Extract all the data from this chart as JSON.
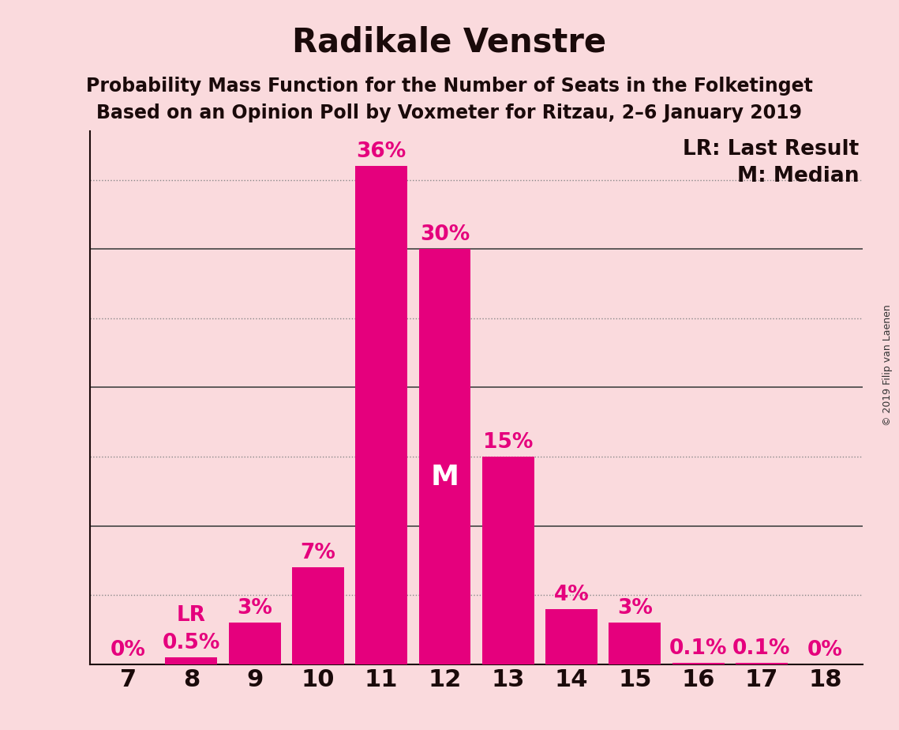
{
  "title": "Radikale Venstre",
  "subtitle1": "Probability Mass Function for the Number of Seats in the Folketinget",
  "subtitle2": "Based on an Opinion Poll by Voxmeter for Ritzau, 2–6 January 2019",
  "copyright": "© 2019 Filip van Laenen",
  "seats": [
    7,
    8,
    9,
    10,
    11,
    12,
    13,
    14,
    15,
    16,
    17,
    18
  ],
  "probabilities": [
    0.0,
    0.5,
    3.0,
    7.0,
    36.0,
    30.0,
    15.0,
    4.0,
    3.0,
    0.1,
    0.1,
    0.0
  ],
  "bar_color": "#E5007D",
  "background_color": "#FADADD",
  "text_color": "#1a0a0a",
  "bar_labels": [
    "0%",
    "0.5%",
    "3%",
    "7%",
    "36%",
    "30%",
    "15%",
    "4%",
    "3%",
    "0.1%",
    "0.1%",
    "0%"
  ],
  "LR_seat": 8,
  "LR_label": "LR",
  "Median_seat": 12,
  "Median_label": "M",
  "yticks_solid": [
    0,
    10,
    20,
    30
  ],
  "yticks_dotted": [
    5,
    15,
    25,
    35
  ],
  "ylim": [
    0,
    38.5
  ],
  "legend_LR": "LR: Last Result",
  "legend_M": "M: Median",
  "title_fontsize": 30,
  "subtitle_fontsize": 17,
  "axis_fontsize": 22,
  "bar_label_fontsize": 19,
  "legend_fontsize": 19,
  "median_label_fontsize": 26,
  "copyright_fontsize": 9
}
